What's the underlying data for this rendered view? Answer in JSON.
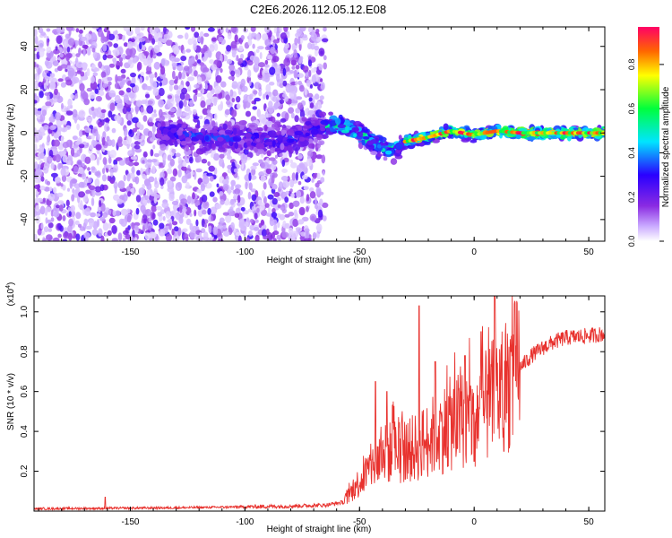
{
  "title": "C2E6.2026.112.05.12.E08",
  "chart_data": [
    {
      "type": "heatmap",
      "name": "spectrogram",
      "xlabel": "Height of straight line (km)",
      "ylabel": "Frequency (Hz)",
      "xlim": [
        -192,
        57
      ],
      "ylim": [
        -50,
        49
      ],
      "xticks": [
        -150,
        -100,
        -50,
        0,
        50
      ],
      "xtick_labels": [
        "-150",
        "-100",
        "-50",
        "0",
        "50"
      ],
      "yticks": [
        -40,
        -20,
        0,
        20,
        40
      ],
      "ytick_labels": [
        "-40",
        "-20",
        "0",
        "20",
        "40"
      ],
      "ridge": {
        "x": [
          -138,
          -120,
          -100,
          -80,
          -66,
          -60,
          -50,
          -42,
          -35,
          -30,
          -20,
          -10,
          0,
          10,
          20,
          40,
          57
        ],
        "y": [
          0,
          -2,
          -2,
          -3,
          3,
          4,
          0,
          -6,
          -8,
          -4,
          -2,
          1,
          -1,
          1,
          0,
          0,
          0
        ]
      },
      "colorbar": {
        "label": "Normalized spectral amplitude",
        "range": [
          0,
          0.97
        ],
        "ticks": [
          0.0,
          0.2,
          0.4,
          0.6,
          0.8
        ],
        "tick_labels": [
          "0.0",
          "0.2",
          "0.4",
          "0.6",
          "0.8"
        ],
        "stops": [
          {
            "v": 0.0,
            "color": "#ffffff"
          },
          {
            "v": 0.07,
            "color": "#c9a8ff"
          },
          {
            "v": 0.16,
            "color": "#8a2be2"
          },
          {
            "v": 0.3,
            "color": "#2a00ff"
          },
          {
            "v": 0.45,
            "color": "#00e5ff"
          },
          {
            "v": 0.6,
            "color": "#00ff3c"
          },
          {
            "v": 0.75,
            "color": "#ffff00"
          },
          {
            "v": 0.86,
            "color": "#ff6600"
          },
          {
            "v": 0.97,
            "color": "#ff0066"
          }
        ]
      }
    },
    {
      "type": "line",
      "name": "snr",
      "xlabel": "Height of straight line (km)",
      "ylabel": "SNR (10 * v/v)",
      "scale_label": "(x10",
      "scale_exponent": "4",
      "scale_suffix": ")",
      "xlim": [
        -192,
        57
      ],
      "ylim": [
        0,
        1.08
      ],
      "xticks": [
        -150,
        -100,
        -50,
        0,
        50
      ],
      "xtick_labels": [
        "-150",
        "-100",
        "-50",
        "0",
        "50"
      ],
      "yticks": [
        0.2,
        0.4,
        0.6,
        0.8,
        1.0
      ],
      "ytick_labels": [
        "0.2",
        "0.4",
        "0.6",
        "0.8",
        "1.0"
      ],
      "line_color": "#e8322e",
      "envelope": {
        "x": [
          -192,
          -160,
          -120,
          -80,
          -65,
          -57,
          -52,
          -45,
          -40,
          -35,
          -30,
          -25,
          -20,
          -15,
          -10,
          -5,
          0,
          5,
          10,
          15,
          20,
          25,
          30,
          35,
          40,
          50,
          57
        ],
        "y": [
          0.012,
          0.014,
          0.018,
          0.025,
          0.03,
          0.045,
          0.12,
          0.22,
          0.28,
          0.3,
          0.3,
          0.32,
          0.36,
          0.4,
          0.44,
          0.46,
          0.48,
          0.52,
          0.58,
          0.65,
          0.72,
          0.78,
          0.82,
          0.85,
          0.87,
          0.88,
          0.89
        ]
      },
      "spikes": [
        {
          "x": -161,
          "y": 0.07
        },
        {
          "x": -43,
          "y": 0.65
        },
        {
          "x": -38,
          "y": 0.6
        },
        {
          "x": -24,
          "y": 1.03
        },
        {
          "x": -17,
          "y": 0.75
        },
        {
          "x": -4,
          "y": 0.78
        },
        {
          "x": 3,
          "y": 0.9
        },
        {
          "x": 9,
          "y": 1.08
        },
        {
          "x": 16,
          "y": 0.8
        }
      ],
      "dips": [
        {
          "x": -30,
          "y": 0.16
        },
        {
          "x": 0,
          "y": 0.25
        },
        {
          "x": 13,
          "y": 0.3
        }
      ]
    }
  ]
}
